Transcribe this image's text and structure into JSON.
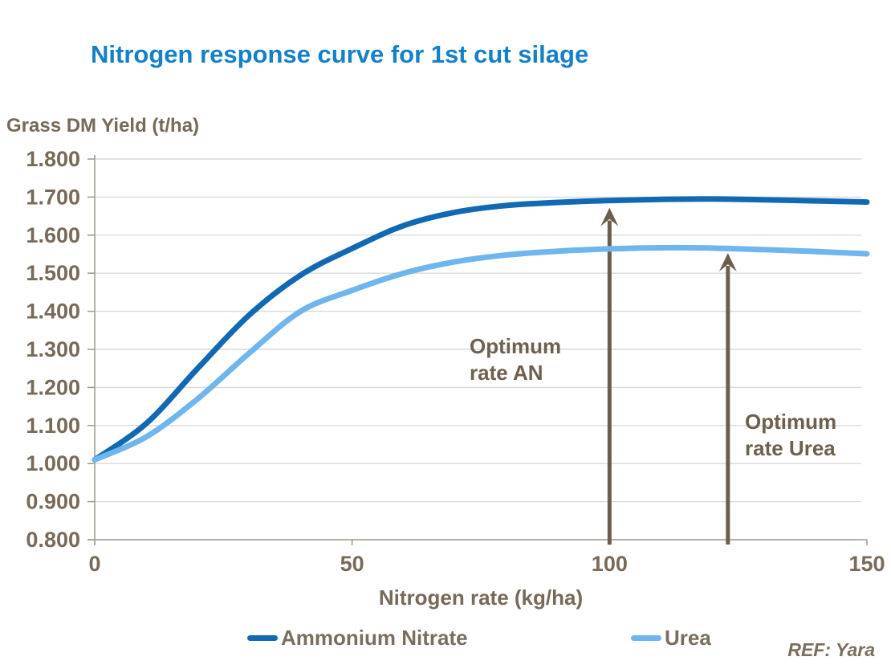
{
  "header": {
    "title": "Nitrogen response curve for 1st cut silage",
    "title_color": "#1480C8"
  },
  "axes": {
    "y_label": "Grass DM Yield (t/ha)",
    "x_label": "Nitrogen rate (kg/ha)"
  },
  "legend": {
    "items": [
      {
        "label": "Ammonium Nitrate",
        "color": "#1169B4"
      },
      {
        "label": "Urea",
        "color": "#6FB5EE"
      }
    ]
  },
  "annotations": {
    "an": {
      "line1": "Optimum",
      "line2": "rate AN"
    },
    "urea": {
      "line1": "Optimum",
      "line2": "rate Urea"
    }
  },
  "footer": {
    "reference": "REF: Yara"
  },
  "colors": {
    "text_brown": "#786A58",
    "arrow_brown": "#6B5E4C",
    "gridline": "#D9D9D9",
    "axis": "#A59C8E"
  },
  "chart_data": {
    "type": "line",
    "title": "Nitrogen response curve for 1st cut silage",
    "xlabel": "Nitrogen rate (kg/ha)",
    "ylabel": "Grass DM Yield (t/ha)",
    "xlim": [
      0,
      150
    ],
    "ylim": [
      0.8,
      1.8
    ],
    "grid": "horizontal",
    "legend_position": "bottom",
    "x_ticks": [
      0,
      50,
      100,
      150
    ],
    "y_ticks": [
      "1.800",
      "1.700",
      "1.600",
      "1.500",
      "1.400",
      "1.300",
      "1.200",
      "1.100",
      "1.000",
      "0.900",
      "0.800"
    ],
    "x": [
      0,
      10,
      20,
      30,
      40,
      50,
      60,
      70,
      80,
      90,
      100,
      110,
      120,
      130,
      140,
      150
    ],
    "series": [
      {
        "name": "Ammonium Nitrate",
        "color": "#1169B4",
        "values": [
          1.01,
          1.105,
          1.25,
          1.39,
          1.495,
          1.565,
          1.625,
          1.66,
          1.678,
          1.686,
          1.691,
          1.694,
          1.695,
          1.693,
          1.69,
          1.687
        ]
      },
      {
        "name": "Urea",
        "color": "#6FB5EE",
        "values": [
          1.01,
          1.07,
          1.17,
          1.29,
          1.4,
          1.455,
          1.5,
          1.53,
          1.548,
          1.558,
          1.564,
          1.567,
          1.566,
          1.562,
          1.557,
          1.551
        ]
      }
    ],
    "annotations": [
      {
        "text": "Optimum rate AN",
        "arrow_x": 100,
        "arrow_tip_y": 1.672
      },
      {
        "text": "Optimum rate Urea",
        "arrow_x": 123,
        "arrow_tip_y": 1.553
      }
    ]
  }
}
